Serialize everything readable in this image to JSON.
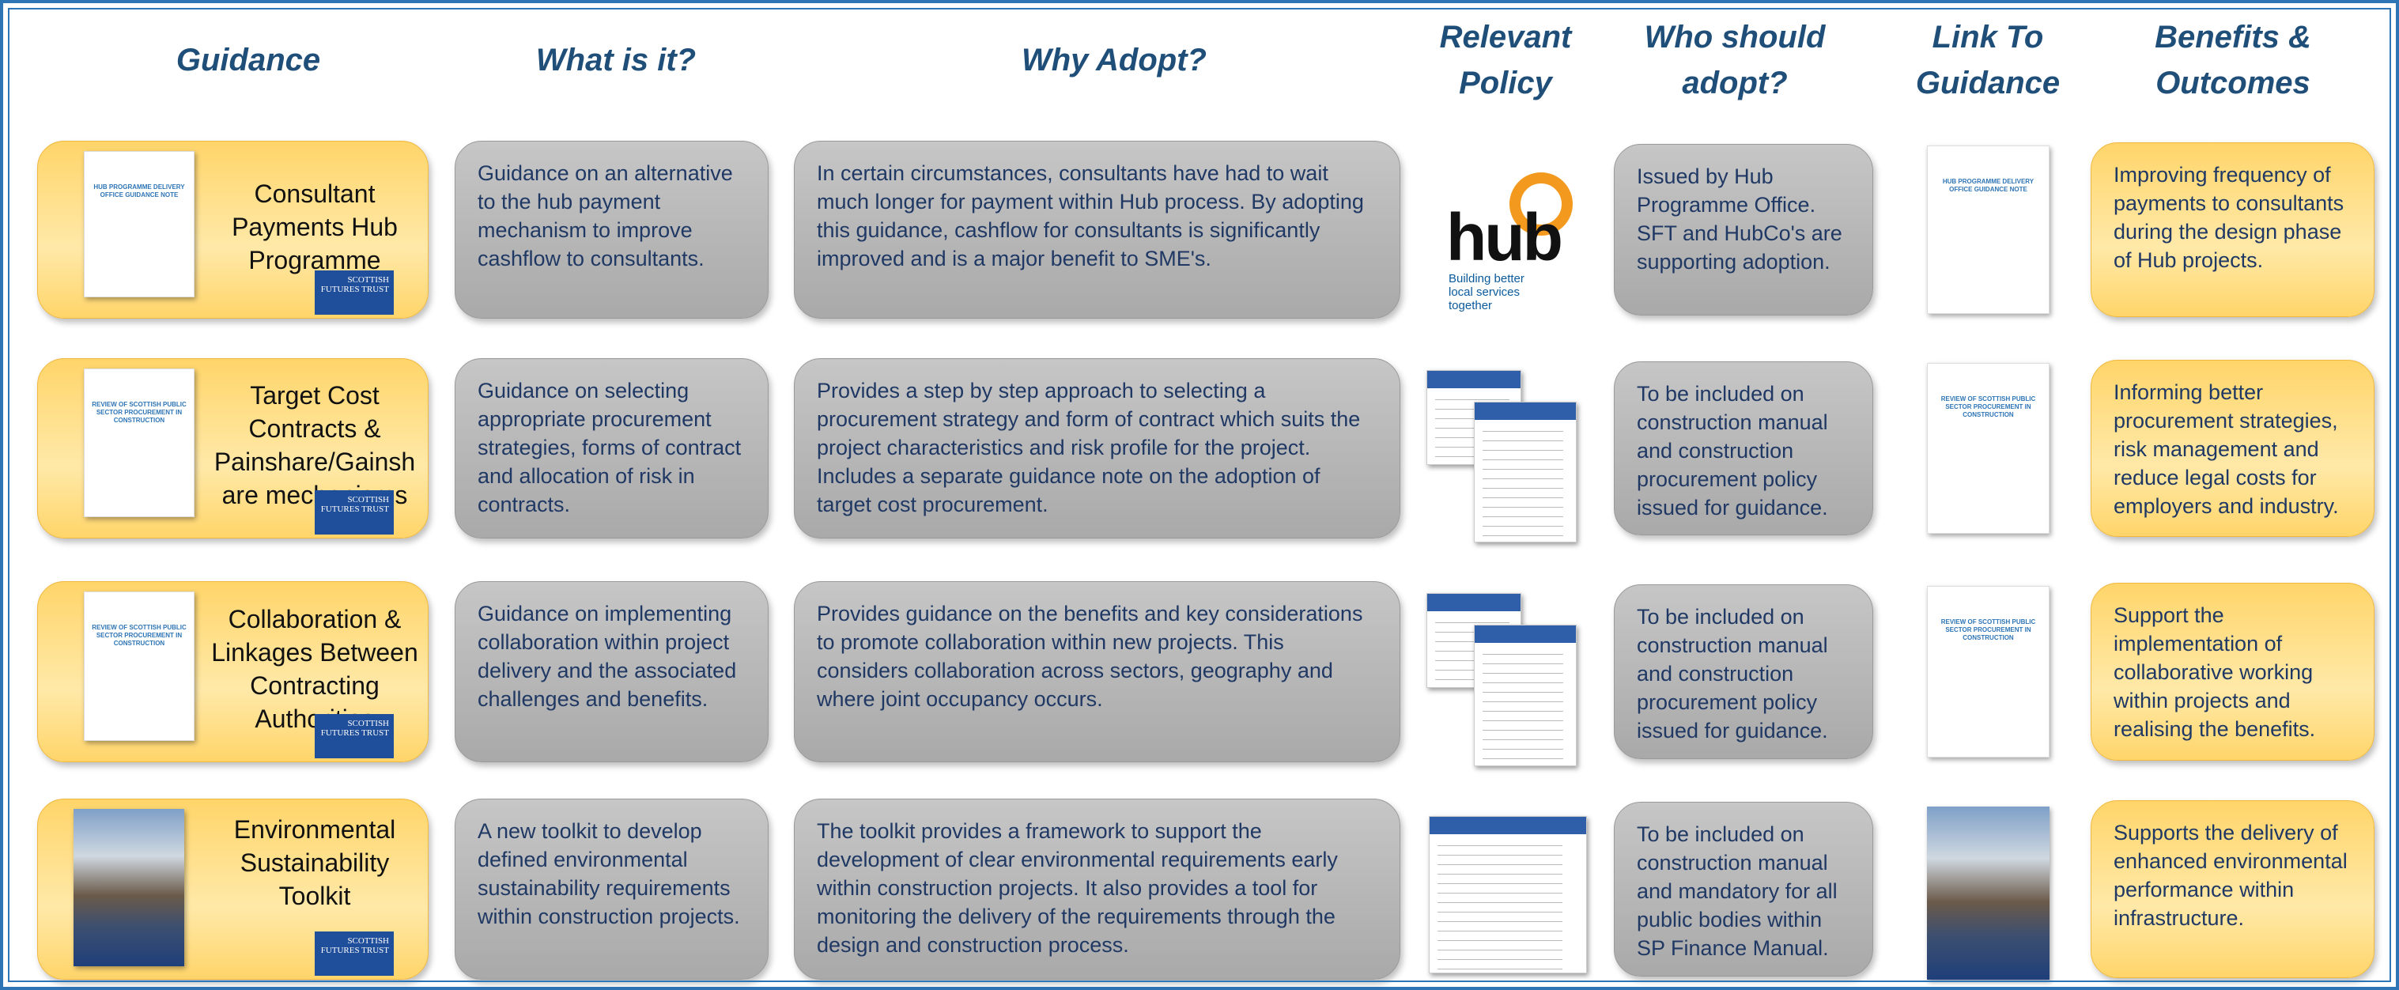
{
  "headers": [
    "Guidance",
    "What is it?",
    "Why Adopt?",
    "Relevant Policy",
    "Who should adopt?",
    "Link To Guidance",
    "Benefits & Outcomes"
  ],
  "badge": "SCOTTISH FUTURES TRUST",
  "hub_logo": {
    "name": "hub",
    "tagline": "Building better local services together"
  },
  "rows": [
    {
      "guidance": "Consultant Payments Hub Programme",
      "doc_title": "HUB PROGRAMME DELIVERY OFFICE GUIDANCE NOTE",
      "what": "Guidance on an alternative to the hub payment mechanism to improve cashflow to consultants.",
      "why": "In certain circumstances, consultants have had to wait much longer for payment within Hub process. By adopting this guidance, cashflow for consultants is significantly improved and is a major benefit to SME's.",
      "who": "Issued by Hub Programme Office. SFT and HubCo's are supporting adoption.",
      "benefits": "Improving frequency of payments to consultants during the design phase of Hub projects."
    },
    {
      "guidance": "Target Cost Contracts & Painshare/Gainsh are mechanisms",
      "doc_title": "REVIEW OF SCOTTISH PUBLIC SECTOR PROCUREMENT IN CONSTRUCTION",
      "what": "Guidance on selecting appropriate procurement strategies, forms of contract and allocation of risk in contracts.",
      "why": "Provides a step by step approach to selecting a procurement strategy and form of contract which suits the project characteristics and risk profile for the project. Includes a separate guidance note on the adoption of target cost procurement.",
      "who": "To be included on construction manual and construction procurement policy issued for guidance.",
      "benefits": "Informing better procurement strategies, risk management and reduce legal costs for employers and industry."
    },
    {
      "guidance": "Collaboration & Linkages Between Contracting Authorities",
      "doc_title": "REVIEW OF SCOTTISH PUBLIC SECTOR PROCUREMENT IN CONSTRUCTION",
      "what": "Guidance on implementing collaboration within project delivery and the associated challenges and benefits.",
      "why": "Provides guidance on the benefits and key considerations to promote collaboration within new projects. This considers collaboration across sectors, geography and where joint occupancy occurs.",
      "who": "To be included on construction manual and construction procurement policy issued for guidance.",
      "benefits": "Support the implementation of collaborative working within projects and realising the benefits."
    },
    {
      "guidance": "Environmental Sustainability Toolkit",
      "what": "A new toolkit to develop defined environmental sustainability requirements within construction projects.",
      "why": "The toolkit provides a framework to support the development of clear environmental requirements early within construction projects. It also provides a tool for monitoring the delivery of the requirements through the design and construction process.",
      "who": "To be included on construction manual and mandatory for all public bodies within SP Finance Manual.",
      "benefits": "Supports the delivery of enhanced environmental performance within infrastructure."
    }
  ]
}
